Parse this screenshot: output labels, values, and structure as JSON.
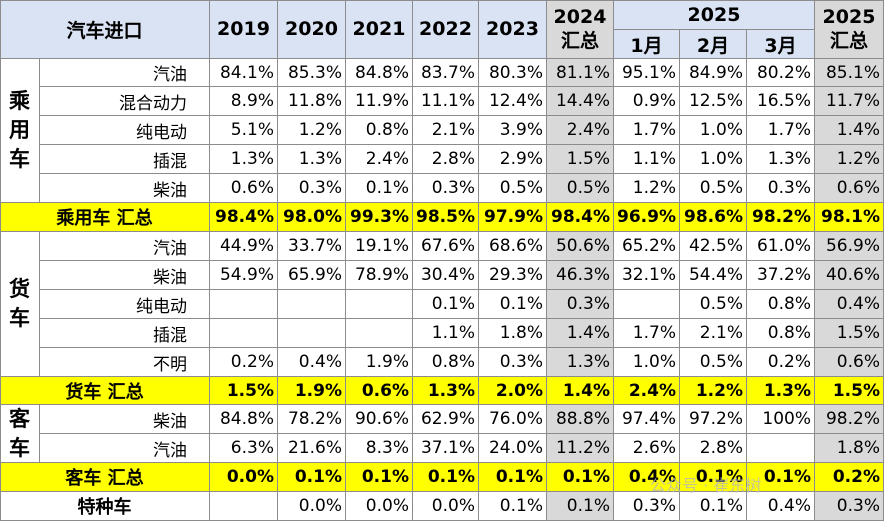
{
  "table": {
    "header": {
      "title": "汽车进口",
      "years": [
        "2019",
        "2020",
        "2021",
        "2022",
        "2023"
      ],
      "y2024": [
        "2024",
        "汇总"
      ],
      "y2025": "2025",
      "months": [
        "1月",
        "2月",
        "3月"
      ],
      "y2025_total": [
        "2025",
        "汇总"
      ]
    },
    "sections": [
      {
        "category": [
          "乘",
          "用",
          "车"
        ],
        "rows": [
          {
            "label": "汽油",
            "values": [
              "84.1%",
              "85.3%",
              "84.8%",
              "83.7%",
              "80.3%",
              "81.1%",
              "95.1%",
              "84.9%",
              "80.2%",
              "85.1%"
            ]
          },
          {
            "label": "混合动力",
            "values": [
              "8.9%",
              "11.8%",
              "11.9%",
              "11.1%",
              "12.4%",
              "14.4%",
              "0.9%",
              "12.5%",
              "16.5%",
              "11.7%"
            ]
          },
          {
            "label": "纯电动",
            "values": [
              "5.1%",
              "1.2%",
              "0.8%",
              "2.1%",
              "3.9%",
              "2.4%",
              "1.7%",
              "1.0%",
              "1.7%",
              "1.4%"
            ]
          },
          {
            "label": "插混",
            "values": [
              "1.3%",
              "1.3%",
              "2.4%",
              "2.8%",
              "2.9%",
              "1.5%",
              "1.1%",
              "1.0%",
              "1.3%",
              "1.2%"
            ]
          },
          {
            "label": "柴油",
            "values": [
              "0.6%",
              "0.3%",
              "0.1%",
              "0.3%",
              "0.5%",
              "0.5%",
              "1.2%",
              "0.5%",
              "0.3%",
              "0.6%"
            ]
          }
        ],
        "total": {
          "label": "乘用车 汇总",
          "values": [
            "98.4%",
            "98.0%",
            "99.3%",
            "98.5%",
            "97.9%",
            "98.4%",
            "96.9%",
            "98.6%",
            "98.2%",
            "98.1%"
          ]
        }
      },
      {
        "category": [
          "货",
          "车"
        ],
        "rows": [
          {
            "label": "汽油",
            "values": [
              "44.9%",
              "33.7%",
              "19.1%",
              "67.6%",
              "68.6%",
              "50.6%",
              "65.2%",
              "42.5%",
              "61.0%",
              "56.9%"
            ]
          },
          {
            "label": "柴油",
            "values": [
              "54.9%",
              "65.9%",
              "78.9%",
              "30.4%",
              "29.3%",
              "46.3%",
              "32.1%",
              "54.4%",
              "37.2%",
              "40.6%"
            ]
          },
          {
            "label": "纯电动",
            "values": [
              "",
              "",
              "",
              "0.1%",
              "0.1%",
              "0.3%",
              "",
              "0.5%",
              "0.8%",
              "0.4%"
            ]
          },
          {
            "label": "插混",
            "values": [
              "",
              "",
              "",
              "1.1%",
              "1.8%",
              "1.4%",
              "1.7%",
              "2.1%",
              "0.8%",
              "1.5%"
            ]
          },
          {
            "label": "不明",
            "values": [
              "0.2%",
              "0.4%",
              "1.9%",
              "0.8%",
              "0.3%",
              "1.3%",
              "1.0%",
              "0.5%",
              "0.2%",
              "0.6%"
            ]
          }
        ],
        "total": {
          "label": "货车 汇总",
          "values": [
            "1.5%",
            "1.9%",
            "0.6%",
            "1.3%",
            "2.0%",
            "1.4%",
            "2.4%",
            "1.2%",
            "1.3%",
            "1.5%"
          ]
        }
      },
      {
        "category": [
          "客",
          "车"
        ],
        "rows": [
          {
            "label": "柴油",
            "values": [
              "84.8%",
              "78.2%",
              "90.6%",
              "62.9%",
              "76.0%",
              "88.8%",
              "97.4%",
              "97.2%",
              "100%",
              "98.2%"
            ]
          },
          {
            "label": "汽油",
            "values": [
              "6.3%",
              "21.6%",
              "8.3%",
              "37.1%",
              "24.0%",
              "11.2%",
              "2.6%",
              "2.8%",
              "",
              "1.8%"
            ]
          }
        ],
        "total": {
          "label": "客车 汇总",
          "values": [
            "0.0%",
            "0.1%",
            "0.1%",
            "0.1%",
            "0.1%",
            "0.1%",
            "0.4%",
            "0.1%",
            "0.1%",
            "0.2%"
          ]
        }
      }
    ],
    "special": {
      "label": "特种车",
      "values": [
        "",
        "0.0%",
        "0.0%",
        "0.0%",
        "0.1%",
        "0.1%",
        "0.3%",
        "0.1%",
        "0.4%",
        "0.3%"
      ]
    }
  },
  "watermark": "公众号 · 崔东树",
  "colors": {
    "header_bg": "#dae3f3",
    "total_bg": "#ffff00",
    "shaded_bg": "#d9d9d9",
    "grid": "#8c8c8c"
  }
}
